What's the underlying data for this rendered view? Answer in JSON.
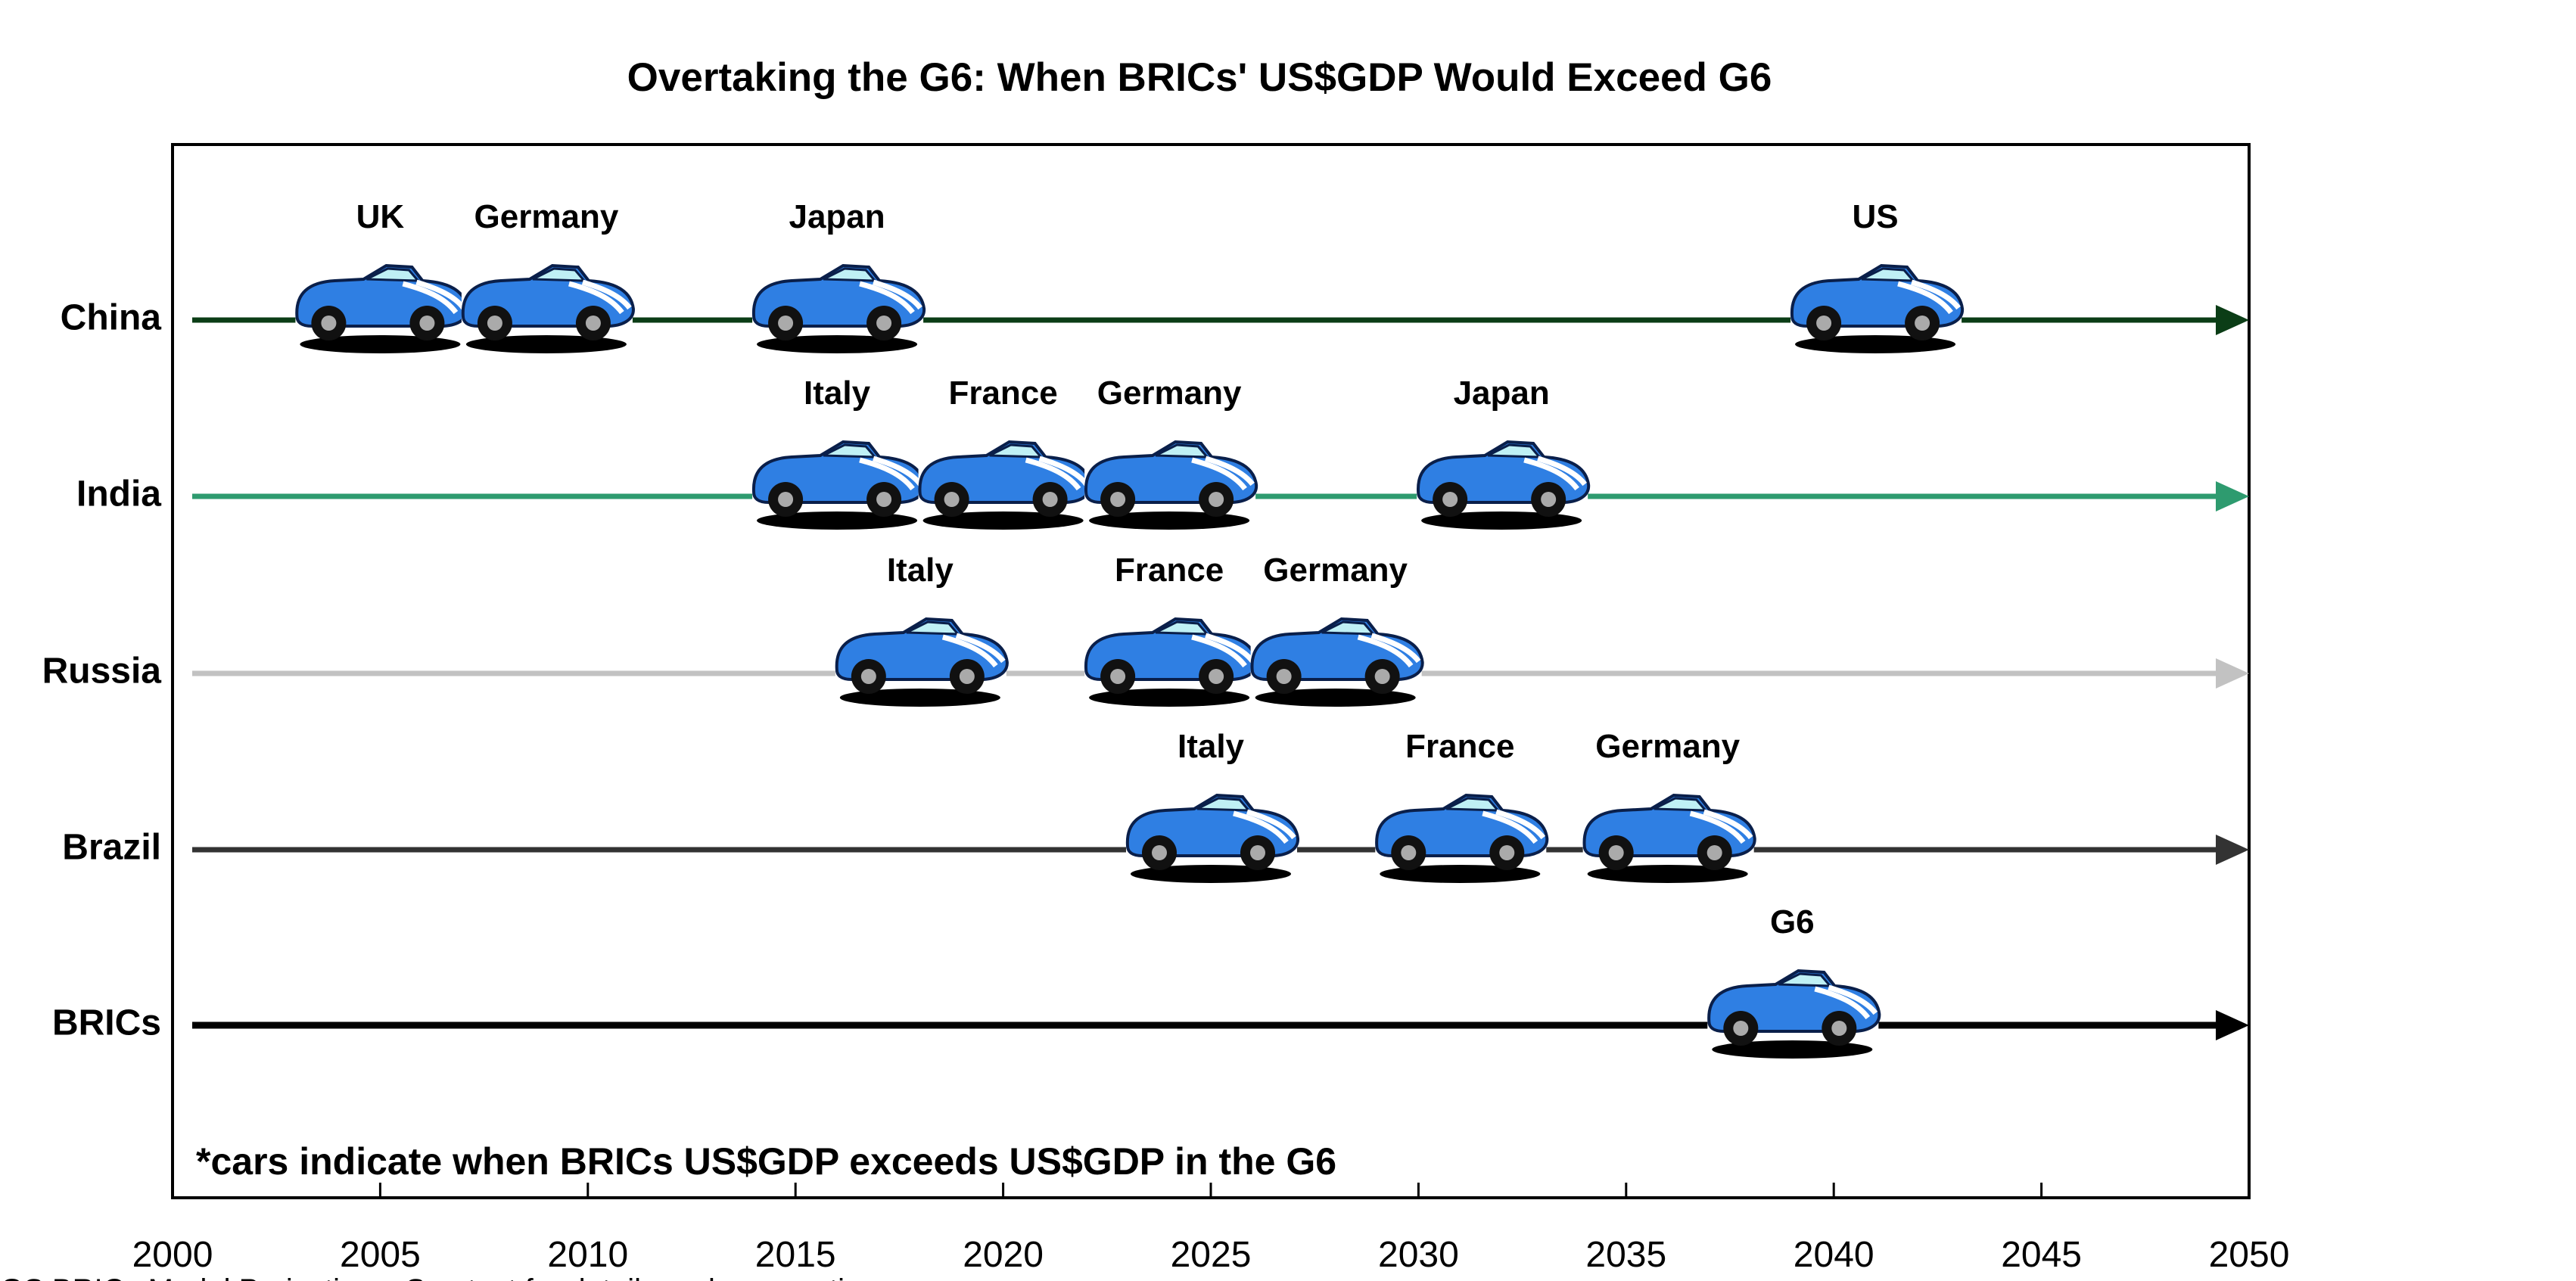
{
  "chart_data": {
    "type": "timeline",
    "title": "Overtaking the G6: When BRICs' US$GDP Would Exceed G6",
    "annotation": "*cars indicate when BRICs US$GDP exceeds US$GDP in the G6",
    "source": "GS BRICs Model Projections. See text for details and assumptions.",
    "xlim": [
      2000,
      2050
    ],
    "xticks": [
      2000,
      2005,
      2010,
      2015,
      2020,
      2025,
      2030,
      2035,
      2040,
      2045,
      2050
    ],
    "car_color": "#2f7fe3",
    "series": [
      {
        "name": "China",
        "color": "#0b3d16",
        "labels": [
          "UK",
          "Germany",
          "Japan",
          "US"
        ],
        "values": [
          2005,
          2009,
          2016,
          2041
        ]
      },
      {
        "name": "India",
        "color": "#2e9b6f",
        "labels": [
          "Italy",
          "France",
          "Germany",
          "Japan"
        ],
        "values": [
          2016,
          2020,
          2024,
          2032
        ]
      },
      {
        "name": "Russia",
        "color": "#c2c2c2",
        "labels": [
          "Italy",
          "France",
          "Germany"
        ],
        "values": [
          2018,
          2024,
          2028
        ]
      },
      {
        "name": "Brazil",
        "color": "#333333",
        "labels": [
          "Italy",
          "France",
          "Germany"
        ],
        "values": [
          2025,
          2031,
          2036
        ]
      },
      {
        "name": "BRICs",
        "color": "#000000",
        "labels": [
          "G6"
        ],
        "values": [
          2039
        ]
      }
    ]
  }
}
